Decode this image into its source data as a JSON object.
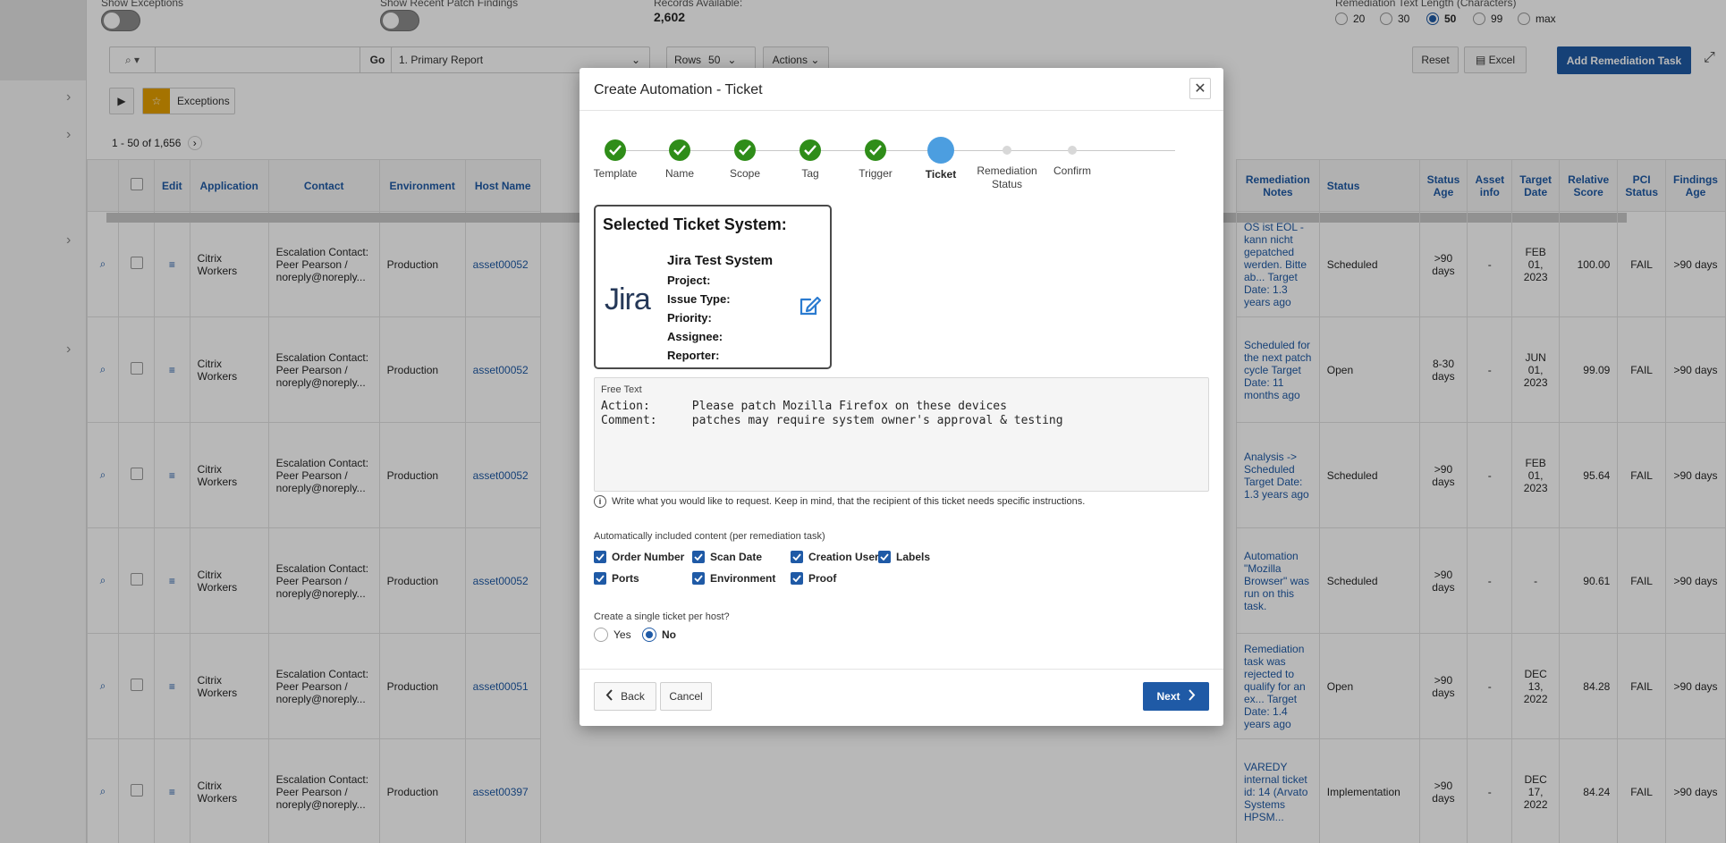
{
  "background": {
    "filters": {
      "show_exceptions_label": "Show Exceptions",
      "show_recent_patch_label": "Show Recent Patch Findings",
      "records_label": "Records Available:",
      "records_value": "2,602",
      "remediation_text_length_label": "Remediation Text Length (Characters)",
      "length_options": [
        "20",
        "30",
        "50",
        "99",
        "max"
      ],
      "length_selected": "50"
    },
    "toolbar": {
      "go": "Go",
      "report": "1. Primary Report",
      "rows_label": "Rows",
      "rows_value": "50",
      "actions": "Actions",
      "reset": "Reset",
      "excel": "Excel",
      "add_task": "Add Remediation Task"
    },
    "exceptions_chip": "Exceptions",
    "pagination": "1 - 50 of 1,656",
    "columns": [
      "Edit",
      "Application",
      "Contact",
      "Environment",
      "Host Name"
    ],
    "right_columns": [
      "Remediation Notes",
      "Status",
      "Status Age",
      "Asset info",
      "Target Date",
      "Relative Score",
      "PCI Status",
      "Findings Age"
    ],
    "rows": [
      {
        "app": "Citrix Workers",
        "contact": "Escalation Contact: Peer Pearson / noreply@noreply...",
        "env": "Production",
        "host": "asset00052",
        "notes": "OS ist EOL - kann nicht gepatched werden. Bitte ab... Target Date: 1.3 years ago",
        "status": "Scheduled",
        "age": ">90 days",
        "asset": "-",
        "target": "FEB 01, 2023",
        "score": "100.00",
        "pci": "FAIL",
        "fage": ">90 days"
      },
      {
        "app": "Citrix Workers",
        "contact": "Escalation Contact: Peer Pearson / noreply@noreply...",
        "env": "Production",
        "host": "asset00052",
        "notes": "Scheduled for the next patch cycle Target Date: 11 months ago",
        "status": "Open",
        "age": "8-30 days",
        "asset": "-",
        "target": "JUN 01, 2023",
        "score": "99.09",
        "pci": "FAIL",
        "fage": ">90 days"
      },
      {
        "app": "Citrix Workers",
        "contact": "Escalation Contact: Peer Pearson / noreply@noreply...",
        "env": "Production",
        "host": "asset00052",
        "notes": "Analysis -> Scheduled Target Date: 1.3 years ago",
        "status": "Scheduled",
        "age": ">90 days",
        "asset": "-",
        "target": "FEB 01, 2023",
        "score": "95.64",
        "pci": "FAIL",
        "fage": ">90 days"
      },
      {
        "app": "Citrix Workers",
        "contact": "Escalation Contact: Peer Pearson / noreply@noreply...",
        "env": "Production",
        "host": "asset00052",
        "notes": "Automation \"Mozilla Browser\" was run on this task.",
        "status": "Scheduled",
        "age": ">90 days",
        "asset": "-",
        "target": "-",
        "score": "90.61",
        "pci": "FAIL",
        "fage": ">90 days"
      },
      {
        "app": "Citrix Workers",
        "contact": "Escalation Contact: Peer Pearson / noreply@noreply...",
        "env": "Production",
        "host": "asset00051",
        "notes": "Remediation task was rejected to qualify for an ex... Target Date: 1.4 years ago",
        "status": "Open",
        "age": ">90 days",
        "asset": "-",
        "target": "DEC 13, 2022",
        "score": "84.28",
        "pci": "FAIL",
        "fage": ">90 days"
      },
      {
        "app": "Citrix Workers",
        "contact": "Escalation Contact: Peer Pearson / noreply@noreply...",
        "env": "Production",
        "host": "asset00397",
        "notes": "VAREDY internal ticket id: 14 (Arvato Systems HPSM...",
        "status": "Implementation",
        "age": ">90 days",
        "asset": "-",
        "target": "DEC 17, 2022",
        "score": "84.24",
        "pci": "FAIL",
        "fage": ">90 days"
      }
    ]
  },
  "dialog": {
    "title": "Create Automation - Ticket",
    "steps": [
      {
        "label": "Template",
        "state": "done"
      },
      {
        "label": "Name",
        "state": "done"
      },
      {
        "label": "Scope",
        "state": "done"
      },
      {
        "label": "Tag",
        "state": "done"
      },
      {
        "label": "Trigger",
        "state": "done"
      },
      {
        "label": "Ticket",
        "state": "current"
      },
      {
        "label": "Remediation Status",
        "state": "todo"
      },
      {
        "label": "Confirm",
        "state": "todo"
      }
    ],
    "ticket_system": {
      "heading": "Selected Ticket System:",
      "logo_text": "Jira",
      "name": "Jira Test System",
      "project_label": "Project:",
      "issue_type_label": "Issue Type:",
      "priority_label": "Priority:",
      "assignee_label": "Assignee:",
      "reporter_label": "Reporter:"
    },
    "free_text": {
      "label": "Free Text",
      "value": "Action:      Please patch Mozilla Firefox on these devices\nComment:     patches may require system owner's approval & testing"
    },
    "hint": "Write what you would like to request. Keep in mind, that the recipient of this ticket needs specific instructions.",
    "auto_content_label": "Automatically included content (per remediation task)",
    "auto_content": [
      "Order Number",
      "Scan Date",
      "Creation User",
      "Labels",
      "Ports",
      "Environment",
      "Proof"
    ],
    "single_ticket_label": "Create a single ticket per host?",
    "single_ticket_options": [
      "Yes",
      "No"
    ],
    "single_ticket_selected": "No",
    "back": "Back",
    "cancel": "Cancel",
    "next": "Next"
  },
  "colors": {
    "accent": "#1f5aa6",
    "step_done": "#2f8d19",
    "step_current": "#4c9ee0",
    "critical": "#c0392b"
  }
}
